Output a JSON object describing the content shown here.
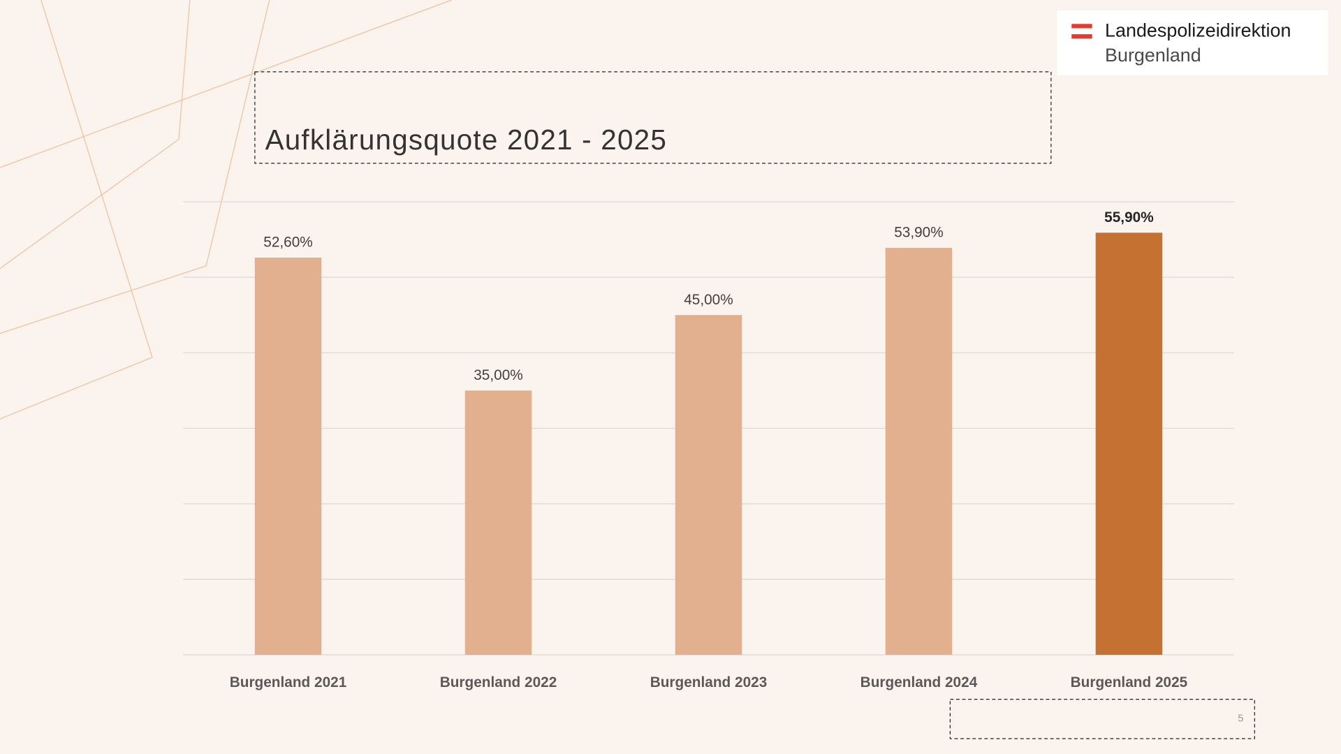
{
  "logo": {
    "line1": "Landespolizeidirektion",
    "line2": "Burgenland"
  },
  "page_number": "5",
  "chart_data": {
    "type": "bar",
    "title": "Aufklärungsquote 2021 - 2025",
    "categories": [
      "Burgenland 2021",
      "Burgenland 2022",
      "Burgenland 2023",
      "Burgenland 2024",
      "Burgenland 2025"
    ],
    "values": [
      52.6,
      35.0,
      45.0,
      53.9,
      55.9
    ],
    "value_labels": [
      "52,60%",
      "35,00%",
      "45,00%",
      "53,90%",
      "55,90%"
    ],
    "colors": [
      "#e2b08e",
      "#e2b08e",
      "#e2b08e",
      "#e2b08e",
      "#c47132"
    ],
    "ylim": [
      0,
      60
    ],
    "yticks": [
      0,
      10,
      20,
      30,
      40,
      50,
      60
    ],
    "grid": true
  }
}
